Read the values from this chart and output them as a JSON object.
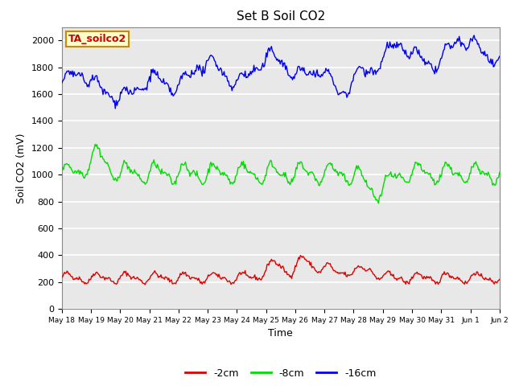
{
  "title": "Set B Soil CO2",
  "xlabel": "Time",
  "ylabel": "Soil CO2 (mV)",
  "annotation_text": "TA_soilco2",
  "annotation_color": "#cc0000",
  "annotation_bg": "#ffffcc",
  "annotation_border": "#cc8800",
  "bg_color": "#e8e8e8",
  "ylim": [
    0,
    2100
  ],
  "yticks": [
    0,
    200,
    400,
    600,
    800,
    1000,
    1200,
    1400,
    1600,
    1800,
    2000
  ],
  "series_red_label": "-2cm",
  "series_red_color": "#dd0000",
  "series_green_label": "-8cm",
  "series_green_color": "#00dd00",
  "series_blue_label": "-16cm",
  "series_blue_color": "#0000ee",
  "n_points": 500,
  "x_start_day": 18,
  "x_end_day": 33,
  "xtick_days": [
    18,
    19,
    20,
    21,
    22,
    23,
    24,
    25,
    26,
    27,
    28,
    29,
    30,
    31,
    32,
    33
  ],
  "xtick_labels": [
    "May 18",
    "May 19",
    "May 20",
    "May 21",
    "May 22",
    "May 23",
    "May 24",
    "May 25",
    "May 26",
    "May 27",
    "May 28",
    "May 29",
    "May 30",
    "May 31",
    "Jun 1",
    "Jun 2"
  ]
}
